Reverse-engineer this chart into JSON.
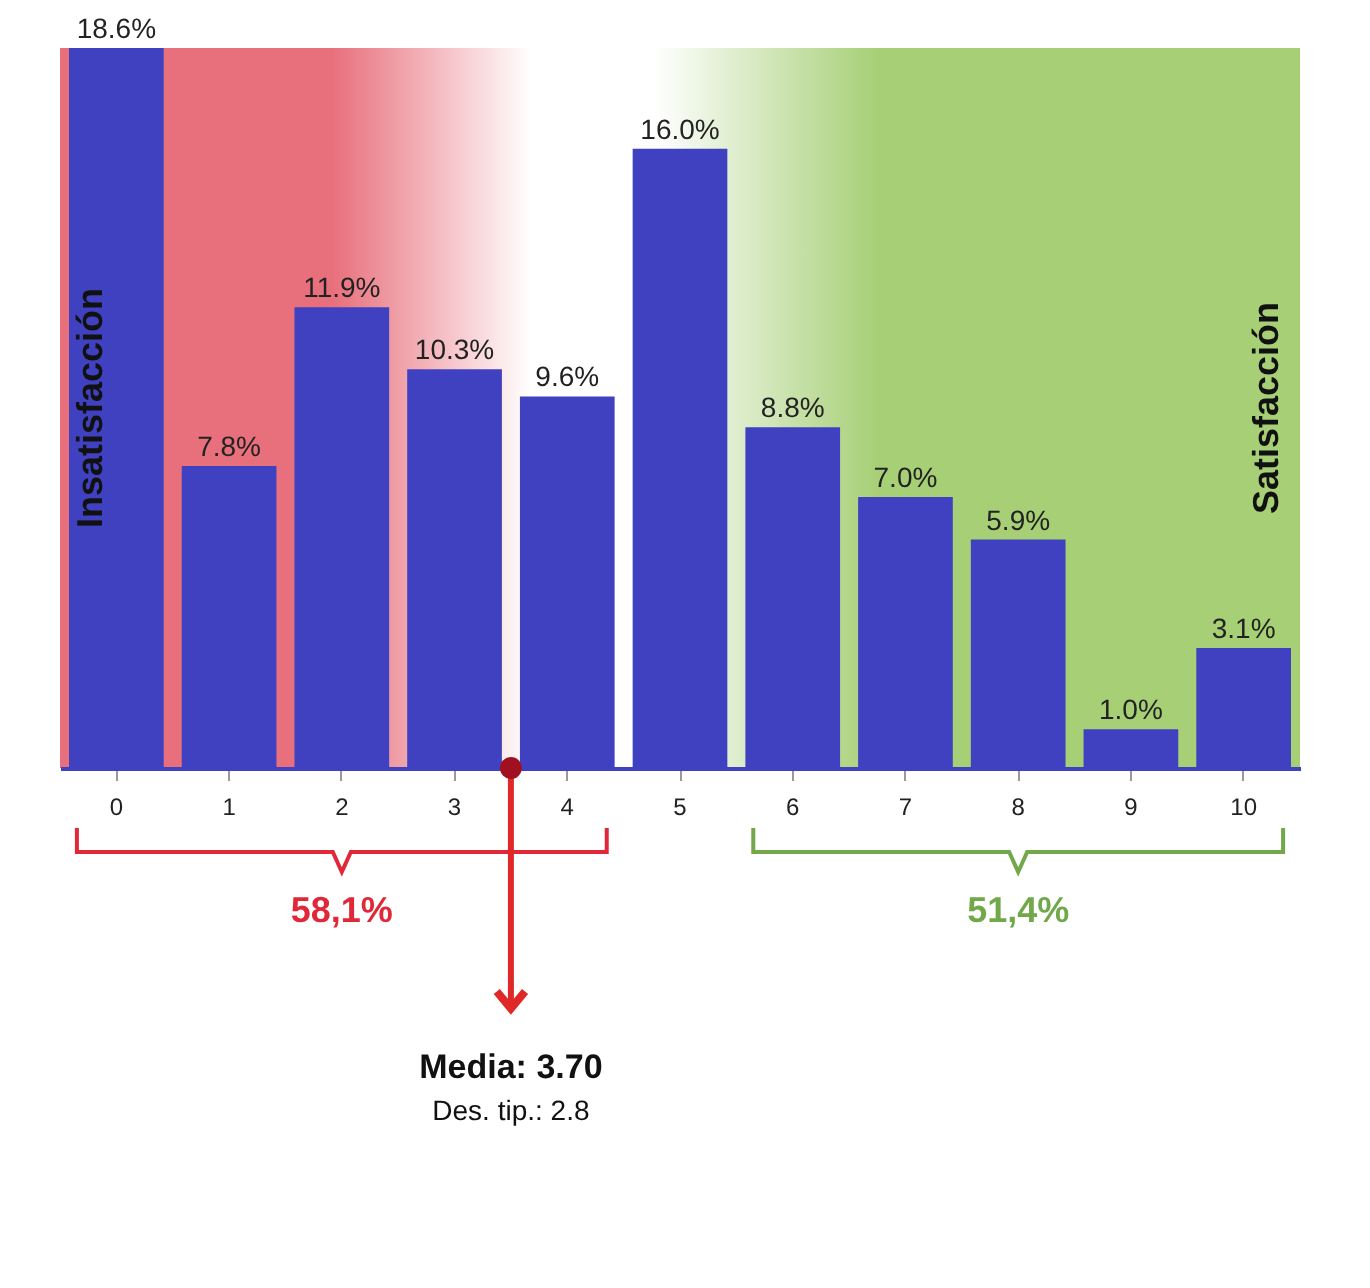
{
  "chart_data": {
    "type": "bar",
    "categories": [
      "0",
      "1",
      "2",
      "3",
      "4",
      "5",
      "6",
      "7",
      "8",
      "9",
      "10"
    ],
    "values": [
      18.6,
      7.8,
      11.9,
      10.3,
      9.6,
      16.0,
      8.8,
      7.0,
      5.9,
      1.0,
      3.1
    ],
    "value_labels": [
      "18.6%",
      "7.8%",
      "11.9%",
      "10.3%",
      "9.6%",
      "16.0%",
      "8.8%",
      "7.0%",
      "5.9%",
      "1.0%",
      "3.1%"
    ],
    "color": "#3f41c0",
    "grid": false,
    "annotations": [
      "Insatisfacción",
      "Satisfacción",
      "58,1%",
      "51,4%",
      "Media: 3.70",
      "Des. tip.: 2.8"
    ]
  }
}
